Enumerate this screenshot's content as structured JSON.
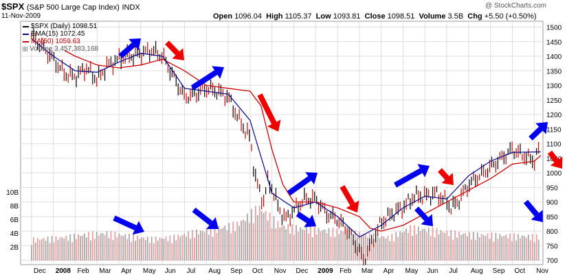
{
  "header": {
    "symbol": "$SPX",
    "name": "(S&P 500 Large Cap Index)",
    "exchange": "INDX",
    "date": "11-Nov-2009",
    "watermark": "@ StockCharts.com",
    "open_label": "Open",
    "open": "1096.04",
    "high_label": "High",
    "high": "1105.37",
    "low_label": "Low",
    "low": "1093.81",
    "close_label": "Close",
    "close": "1098.51",
    "volume_label": "Volume",
    "volume": "3.5B",
    "chg_label": "Chg",
    "chg": "+5.50 (+0.50%)"
  },
  "legend": [
    {
      "text": "$SPX (Daily) 1098.51",
      "color": "#000000"
    },
    {
      "text": "EMA(15) 1072.45",
      "color": "#00008b"
    },
    {
      "text": "MA(50) 1059.63",
      "color": "#cc0000"
    },
    {
      "text": "Volume 3,457,383,168",
      "color": "#888888"
    }
  ],
  "chart_data": {
    "type": "line",
    "title": "$SPX (S&P 500 Large Cap Index) INDX",
    "price_axis": {
      "ticks": [
        700,
        750,
        800,
        850,
        900,
        950,
        1000,
        1050,
        1100,
        1150,
        1200,
        1250,
        1300,
        1350,
        1400,
        1450,
        1500
      ],
      "labels": [
        "700",
        "750",
        "800",
        "850",
        "900",
        "950",
        "1000",
        "1050",
        "1100",
        "1150",
        "1200",
        "1250",
        "1300",
        "1350",
        "1400",
        "1450",
        "1500"
      ],
      "ylim": [
        685,
        1520
      ]
    },
    "volume_axis": {
      "ticks": [
        2,
        4,
        6,
        8,
        10
      ],
      "labels": [
        "2B",
        "4B",
        "6B",
        "8B",
        "10B"
      ],
      "ylim": [
        0,
        12
      ]
    },
    "x_labels": [
      "Dec",
      "2008",
      "Feb",
      "Mar",
      "Apr",
      "May",
      "Jun",
      "Jul",
      "Aug",
      "Sep",
      "Oct",
      "Nov",
      "Dec",
      "2009",
      "Feb",
      "Mar",
      "Apr",
      "May",
      "Jun",
      "Jul",
      "Aug",
      "Sep",
      "Oct",
      "Nov"
    ],
    "x_months": [
      0,
      1,
      2,
      3,
      4,
      5,
      6,
      7,
      8,
      9,
      10,
      11,
      12,
      13,
      14,
      15,
      16,
      17,
      18,
      19,
      20,
      21,
      22,
      23
    ],
    "x_range": [
      -0.5,
      23.4
    ],
    "series": [
      {
        "name": "$SPX (Daily)",
        "color": "#000000",
        "x": [
          -0.5,
          0,
          1,
          1.5,
          2,
          2.5,
          3,
          3.5,
          4,
          4.5,
          5,
          5.5,
          6,
          6.5,
          7,
          7.5,
          8,
          8.5,
          9,
          9.5,
          10,
          10.2,
          10.4,
          10.6,
          10.8,
          11,
          11.3,
          11.6,
          12,
          12.5,
          13,
          13.5,
          14,
          14.5,
          15,
          15.2,
          15.5,
          16,
          16.5,
          17,
          17.5,
          18,
          18.5,
          19,
          19.2,
          19.5,
          20,
          20.5,
          21,
          21.5,
          22,
          22.5,
          23,
          23.3
        ],
        "values": [
          1460,
          1470,
          1390,
          1340,
          1330,
          1360,
          1320,
          1370,
          1390,
          1400,
          1410,
          1420,
          1400,
          1330,
          1260,
          1270,
          1290,
          1280,
          1260,
          1180,
          1120,
          1000,
          940,
          900,
          970,
          950,
          880,
          840,
          870,
          910,
          910,
          860,
          840,
          800,
          730,
          700,
          750,
          830,
          860,
          880,
          920,
          920,
          930,
          900,
          880,
          900,
          960,
          990,
          1020,
          1050,
          1080,
          1060,
          1040,
          1098
        ]
      },
      {
        "name": "EMA(15)",
        "color": "#00008b",
        "x": [
          0,
          1,
          2,
          3,
          4,
          5,
          6,
          7,
          8,
          9,
          10,
          11,
          12,
          13,
          14,
          15,
          16,
          17,
          18,
          19,
          20,
          21,
          22,
          23.3
        ],
        "values": [
          1460,
          1400,
          1350,
          1345,
          1380,
          1410,
          1400,
          1290,
          1280,
          1270,
          1180,
          930,
          880,
          900,
          850,
          780,
          820,
          880,
          920,
          910,
          990,
          1040,
          1070,
          1072
        ]
      },
      {
        "name": "MA(50)",
        "color": "#cc0000",
        "x": [
          1.5,
          2,
          3,
          4,
          5,
          6,
          7,
          8,
          9,
          10,
          10.5,
          11,
          11.5,
          12,
          13,
          14,
          15,
          15.5,
          16,
          17,
          18,
          19,
          20,
          21,
          22,
          23,
          23.3
        ],
        "values": [
          1420,
          1400,
          1370,
          1360,
          1370,
          1390,
          1350,
          1300,
          1290,
          1280,
          1230,
          1080,
          960,
          900,
          900,
          880,
          850,
          810,
          800,
          820,
          860,
          900,
          940,
          980,
          1030,
          1040,
          1060
        ]
      }
    ],
    "volume_levels": [
      2.8,
      3.0,
      3.2,
      3.6,
      3.8,
      3.4,
      3.0,
      3.2,
      3.9,
      4.4,
      5.0,
      7.3,
      4.8,
      4.4,
      4.2,
      4.0,
      3.6,
      3.2,
      4.5,
      4.2,
      3.8,
      3.6,
      3.5,
      3.4,
      3.3
    ]
  },
  "arrows": [
    {
      "color": "blue",
      "direction": "up-right"
    },
    {
      "color": "red",
      "direction": "down-right"
    },
    {
      "color": "blue",
      "direction": "up-right"
    },
    {
      "color": "red",
      "direction": "down-right"
    },
    {
      "color": "blue",
      "direction": "up-right"
    },
    {
      "color": "red",
      "direction": "down-right"
    },
    {
      "color": "blue",
      "direction": "up-right"
    },
    {
      "color": "red",
      "direction": "down-right"
    },
    {
      "color": "blue",
      "direction": "up-right"
    },
    {
      "color": "red",
      "direction": "down-right"
    },
    {
      "color": "blue",
      "direction": "down-right"
    },
    {
      "color": "blue",
      "direction": "down-right"
    },
    {
      "color": "blue",
      "direction": "down-right"
    },
    {
      "color": "blue",
      "direction": "down-right"
    },
    {
      "color": "blue",
      "direction": "down-right"
    }
  ],
  "colors": {
    "grid": "#dddddd",
    "blue_arrow": "#0000ee",
    "red_arrow": "#ee0000",
    "vol_up": "#e6a0a0",
    "vol_down": "#a8a8a8"
  }
}
